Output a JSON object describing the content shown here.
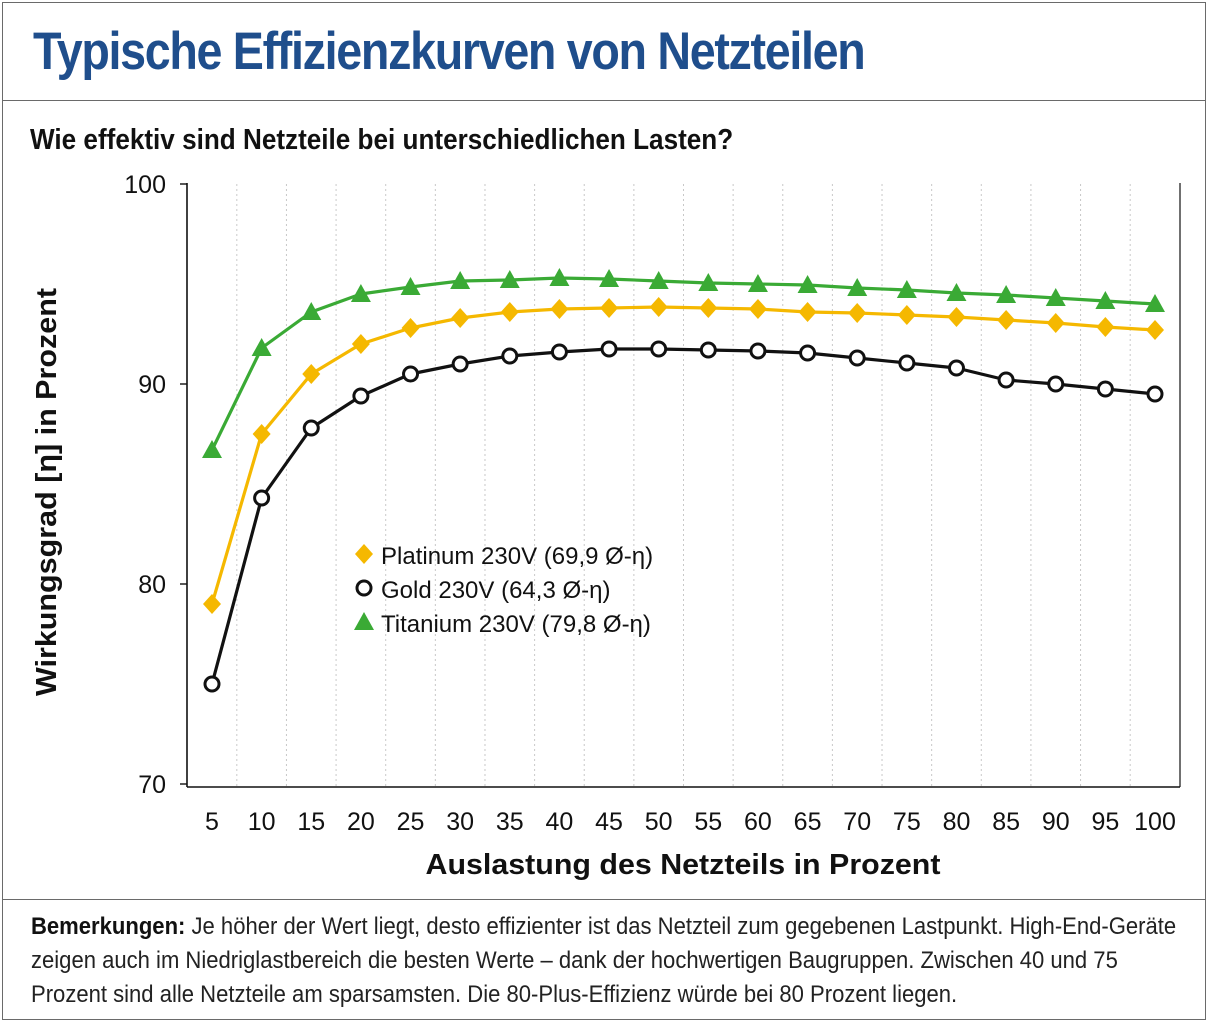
{
  "title": "Typische Effizienzkurven von Netzteilen",
  "subtitle": "Wie effektiv sind Netzteile bei unterschiedlichen Lasten?",
  "notes": {
    "label": "Bemerkungen:",
    "text": " Je höher der Wert liegt, desto effizienter ist das Netzteil zum gegebenen Lastpunkt. High-End-Geräte zeigen auch im Niedriglastbereich die besten Werte – dank der hochwertigen Baugruppen. Zwischen 40 und 75 Prozent sind alle Netzteile am sparsamsten. Die 80-Plus-Effizienz würde bei 80 Prozent liegen."
  },
  "colors": {
    "title": "#1f4e8c",
    "platinum": "#f5b800",
    "gold": "#111111",
    "titanium": "#3aaa35"
  },
  "chart_data": {
    "type": "line",
    "xlabel": "Auslastung des Netzteils in Prozent",
    "ylabel": "Wirkungsgrad [η] in Prozent",
    "x": [
      5,
      10,
      15,
      20,
      25,
      30,
      35,
      40,
      45,
      50,
      55,
      60,
      65,
      70,
      75,
      80,
      85,
      90,
      95,
      100
    ],
    "x_ticks": [
      "5",
      "10",
      "15",
      "20",
      "25",
      "30",
      "35",
      "40",
      "45",
      "50",
      "55",
      "60",
      "65",
      "70",
      "75",
      "80",
      "85",
      "90",
      "95",
      "100"
    ],
    "y_ticks": [
      "70",
      "80",
      "90",
      "100"
    ],
    "ylim": [
      70,
      100
    ],
    "grid": "vertical",
    "legend_position": "center-left",
    "series": [
      {
        "name": "Platinum 230V (69,9 Ø-η)",
        "marker": "diamond",
        "color": "#f5b800",
        "values": [
          79.0,
          87.5,
          90.5,
          92.0,
          92.8,
          93.3,
          93.6,
          93.75,
          93.8,
          93.85,
          93.8,
          93.75,
          93.6,
          93.55,
          93.45,
          93.35,
          93.2,
          93.05,
          92.85,
          92.7
        ]
      },
      {
        "name": "Gold 230V (64,3 Ø-η)",
        "marker": "circle",
        "color": "#111111",
        "values": [
          75.0,
          84.3,
          87.8,
          89.4,
          90.5,
          91.0,
          91.4,
          91.6,
          91.75,
          91.75,
          91.7,
          91.65,
          91.55,
          91.3,
          91.05,
          90.8,
          90.2,
          90.0,
          89.75,
          89.5
        ]
      },
      {
        "name": "Titanium 230V (79,8 Ø-η)",
        "marker": "triangle",
        "color": "#3aaa35",
        "values": [
          86.7,
          91.8,
          93.6,
          94.5,
          94.85,
          95.15,
          95.2,
          95.3,
          95.25,
          95.15,
          95.05,
          95.0,
          94.95,
          94.8,
          94.7,
          94.55,
          94.45,
          94.3,
          94.15,
          94.0
        ]
      }
    ]
  }
}
